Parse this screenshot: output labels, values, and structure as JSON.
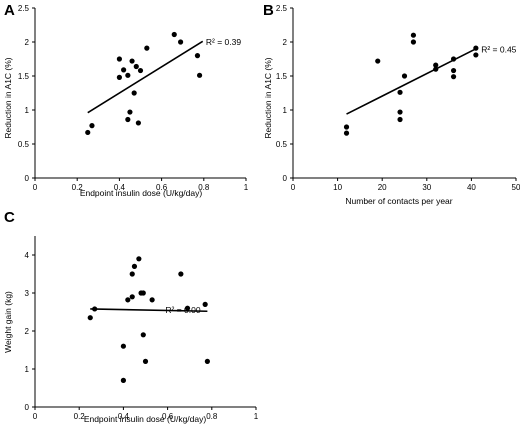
{
  "chart_data": [
    {
      "panel": "A",
      "type": "scatter",
      "title": "",
      "xlabel": "Endpoint insulin dose (U/kg/day)",
      "ylabel": "Reduction in A1C (%)",
      "xlim": [
        0,
        1
      ],
      "ylim": [
        0,
        2.5
      ],
      "x_ticks": [
        0,
        0.2,
        0.4,
        0.6,
        0.8,
        1
      ],
      "x_tick_labels": [
        "0",
        "0.2",
        "0.4",
        "0.6",
        "0.8",
        "1"
      ],
      "y_ticks": [
        0,
        0.5,
        1,
        1.5,
        2,
        2.5
      ],
      "y_tick_labels": [
        "0",
        "0.5",
        "1",
        "1.5",
        "2",
        "2.5"
      ],
      "grid": false,
      "points": [
        {
          "x": 0.25,
          "y": 0.67
        },
        {
          "x": 0.27,
          "y": 0.77
        },
        {
          "x": 0.4,
          "y": 1.75
        },
        {
          "x": 0.4,
          "y": 1.48
        },
        {
          "x": 0.42,
          "y": 1.59
        },
        {
          "x": 0.44,
          "y": 1.51
        },
        {
          "x": 0.44,
          "y": 0.86
        },
        {
          "x": 0.45,
          "y": 0.97
        },
        {
          "x": 0.46,
          "y": 1.72
        },
        {
          "x": 0.47,
          "y": 1.25
        },
        {
          "x": 0.48,
          "y": 1.64
        },
        {
          "x": 0.49,
          "y": 0.81
        },
        {
          "x": 0.5,
          "y": 1.58
        },
        {
          "x": 0.53,
          "y": 1.91
        },
        {
          "x": 0.66,
          "y": 2.11
        },
        {
          "x": 0.69,
          "y": 2.0
        },
        {
          "x": 0.77,
          "y": 1.8
        },
        {
          "x": 0.78,
          "y": 1.51
        }
      ],
      "trendline": {
        "x": [
          0.25,
          0.795
        ],
        "y": [
          0.96,
          2.01
        ]
      },
      "r2_text": "R² = 0.39",
      "r2_anchor": {
        "x": 0.81,
        "y": 2.0
      }
    },
    {
      "panel": "B",
      "type": "scatter",
      "title": "",
      "xlabel": "Number of contacts per year",
      "ylabel": "Reduction in A1C (%)",
      "xlim": [
        0,
        50
      ],
      "ylim": [
        0,
        2.5
      ],
      "x_ticks": [
        0,
        10,
        20,
        30,
        40,
        50
      ],
      "x_tick_labels": [
        "0",
        "10",
        "20",
        "30",
        "40",
        "50"
      ],
      "y_ticks": [
        0,
        0.5,
        1,
        1.5,
        2,
        2.5
      ],
      "y_tick_labels": [
        "0",
        "0.5",
        "1",
        "1.5",
        "2",
        "2.5"
      ],
      "grid": false,
      "points": [
        {
          "x": 12,
          "y": 0.75
        },
        {
          "x": 12,
          "y": 0.66
        },
        {
          "x": 19,
          "y": 1.72
        },
        {
          "x": 24,
          "y": 0.97
        },
        {
          "x": 24,
          "y": 0.86
        },
        {
          "x": 24,
          "y": 1.26
        },
        {
          "x": 25,
          "y": 1.5
        },
        {
          "x": 27,
          "y": 2.1
        },
        {
          "x": 27,
          "y": 2.0
        },
        {
          "x": 32,
          "y": 1.66
        },
        {
          "x": 32,
          "y": 1.6
        },
        {
          "x": 36,
          "y": 1.75
        },
        {
          "x": 36,
          "y": 1.58
        },
        {
          "x": 36,
          "y": 1.49
        },
        {
          "x": 41,
          "y": 1.91
        },
        {
          "x": 41,
          "y": 1.81
        }
      ],
      "trendline": {
        "x": [
          12,
          41
        ],
        "y": [
          0.94,
          1.9
        ]
      },
      "r2_text": "R² = 0.45",
      "r2_anchor": {
        "x": 42.2,
        "y": 1.89
      }
    },
    {
      "panel": "C",
      "type": "scatter",
      "title": "",
      "xlabel": "Endpoint insulin dose (U/kg/day)",
      "ylabel": "Weight gain (kg)",
      "xlim": [
        0,
        1
      ],
      "ylim": [
        0,
        4.5
      ],
      "x_ticks": [
        0,
        0.2,
        0.4,
        0.6,
        0.8,
        1
      ],
      "x_tick_labels": [
        "0",
        "0.2",
        "0.4",
        "0.6",
        "0.8",
        "1"
      ],
      "y_ticks": [
        0,
        1,
        2,
        3,
        4
      ],
      "y_tick_labels": [
        "0",
        "1",
        "2",
        "3",
        "4"
      ],
      "grid": false,
      "points": [
        {
          "x": 0.25,
          "y": 2.35
        },
        {
          "x": 0.27,
          "y": 2.58
        },
        {
          "x": 0.4,
          "y": 1.6
        },
        {
          "x": 0.4,
          "y": 0.7
        },
        {
          "x": 0.42,
          "y": 2.82
        },
        {
          "x": 0.44,
          "y": 2.9
        },
        {
          "x": 0.44,
          "y": 3.5
        },
        {
          "x": 0.45,
          "y": 3.7
        },
        {
          "x": 0.47,
          "y": 3.9
        },
        {
          "x": 0.48,
          "y": 3.0
        },
        {
          "x": 0.49,
          "y": 3.0
        },
        {
          "x": 0.49,
          "y": 1.9
        },
        {
          "x": 0.5,
          "y": 1.2
        },
        {
          "x": 0.53,
          "y": 2.82
        },
        {
          "x": 0.66,
          "y": 3.5
        },
        {
          "x": 0.69,
          "y": 2.6
        },
        {
          "x": 0.77,
          "y": 2.7
        },
        {
          "x": 0.78,
          "y": 1.2
        }
      ],
      "trendline": {
        "x": [
          0.25,
          0.78
        ],
        "y": [
          2.58,
          2.52
        ]
      },
      "r2_text": "R² = 0.00",
      "r2_anchor": {
        "x": 0.59,
        "y": 2.55
      }
    }
  ]
}
